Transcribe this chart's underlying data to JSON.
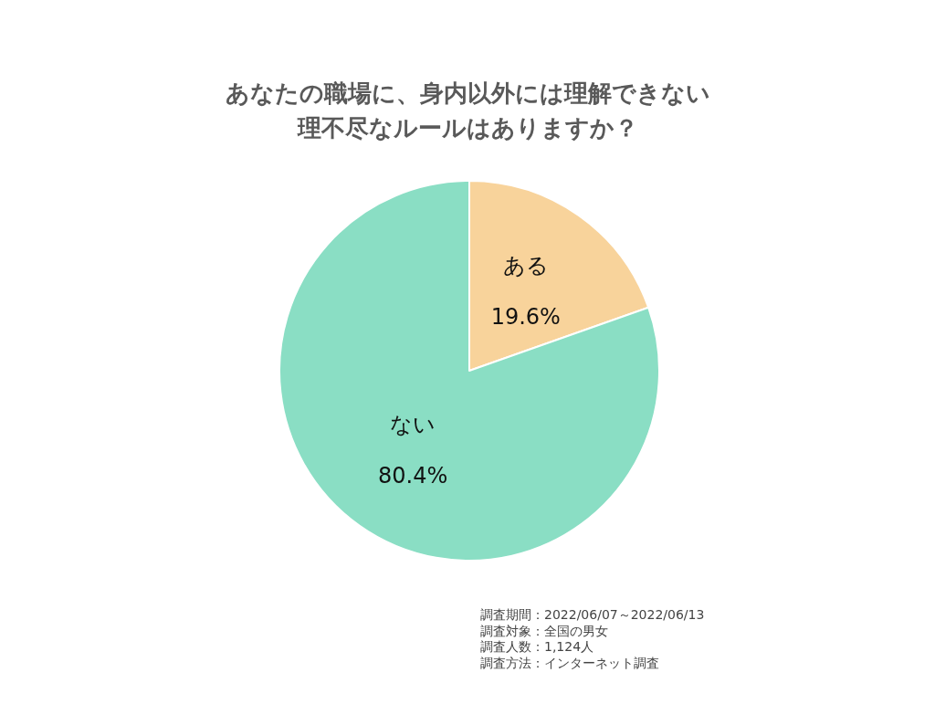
{
  "chart_data": {
    "type": "pie",
    "title": "あなたの職場に、身内以外には理解できない理不尽なルールはありますか？",
    "categories": [
      "ある",
      "ない"
    ],
    "values": [
      19.6,
      80.4
    ],
    "value_labels": [
      "19.6%",
      "80.4%"
    ],
    "colors": [
      "#f8d39b",
      "#8adec4"
    ],
    "legend": false,
    "annotations": [
      "調査期間：2022/06/07～2022/06/13",
      "調査対象：全国の男女",
      "調査人数：1,124人",
      "調査方法：インターネット調査"
    ]
  }
}
